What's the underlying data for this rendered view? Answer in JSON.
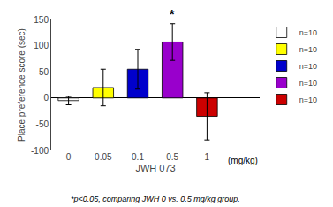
{
  "chart_data": {
    "type": "bar",
    "categories": [
      "0",
      "0.05",
      "0.1",
      "0.5",
      "1"
    ],
    "series": [
      {
        "name": "n=10",
        "color": "#ffffff",
        "values": [
          -5,
          null,
          null,
          null,
          null
        ],
        "errors": [
          8,
          null,
          null,
          null,
          null
        ]
      },
      {
        "name": "n=10",
        "color": "#ffff00",
        "values": [
          null,
          20,
          null,
          null,
          null
        ],
        "errors": [
          null,
          35,
          null,
          null,
          null
        ]
      },
      {
        "name": "n=10",
        "color": "#0000cc",
        "values": [
          null,
          null,
          55,
          null,
          null
        ],
        "errors": [
          null,
          null,
          38,
          null,
          null
        ]
      },
      {
        "name": "n=10",
        "color": "#9900cc",
        "values": [
          null,
          null,
          null,
          107,
          null
        ],
        "errors": [
          null,
          null,
          null,
          35,
          null
        ]
      },
      {
        "name": "n=10",
        "color": "#cc0000",
        "values": [
          null,
          null,
          null,
          null,
          -35
        ],
        "errors": [
          null,
          null,
          null,
          null,
          45
        ]
      }
    ],
    "ylabel": "Place preference score (sec)",
    "xlabel": "JWH 073",
    "xunit": "(mg/kg)",
    "ylim": [
      -100,
      150
    ],
    "yticks": [
      -100,
      -50,
      0,
      50,
      100,
      150
    ],
    "annotations": [
      {
        "text": "*",
        "category": "0.5"
      }
    ],
    "footnote": "*p<0.05, comparing JWH 0 vs. 0.5 mg/kg group.",
    "legend": "upper right",
    "grid": false
  }
}
